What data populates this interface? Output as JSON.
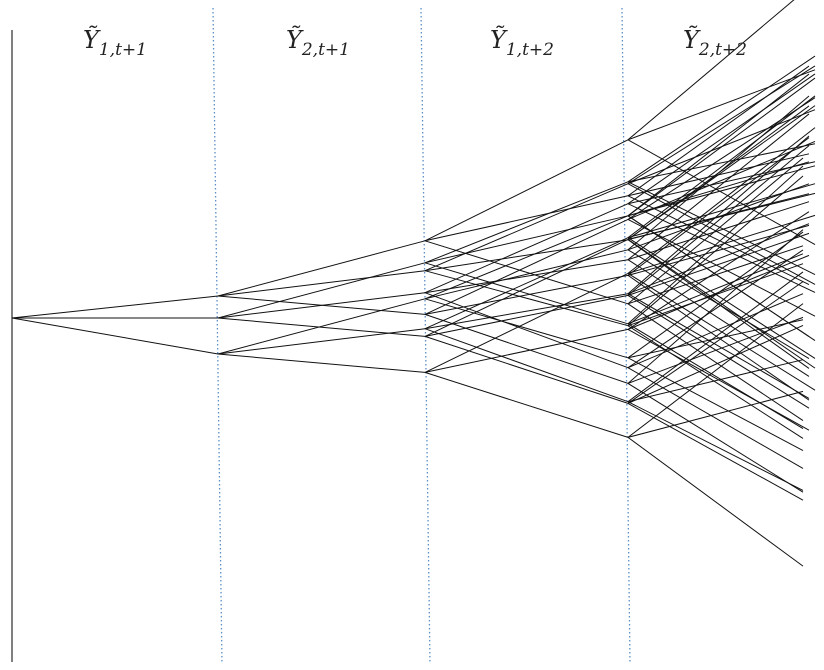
{
  "headers": [
    {
      "symbol": "Ỹ",
      "subscript": "1,t+1"
    },
    {
      "symbol": "Ỹ",
      "subscript": "2,t+1"
    },
    {
      "symbol": "Ỹ",
      "subscript": "1,t+2"
    },
    {
      "symbol": "Ỹ",
      "subscript": "2,t+2"
    }
  ]
}
